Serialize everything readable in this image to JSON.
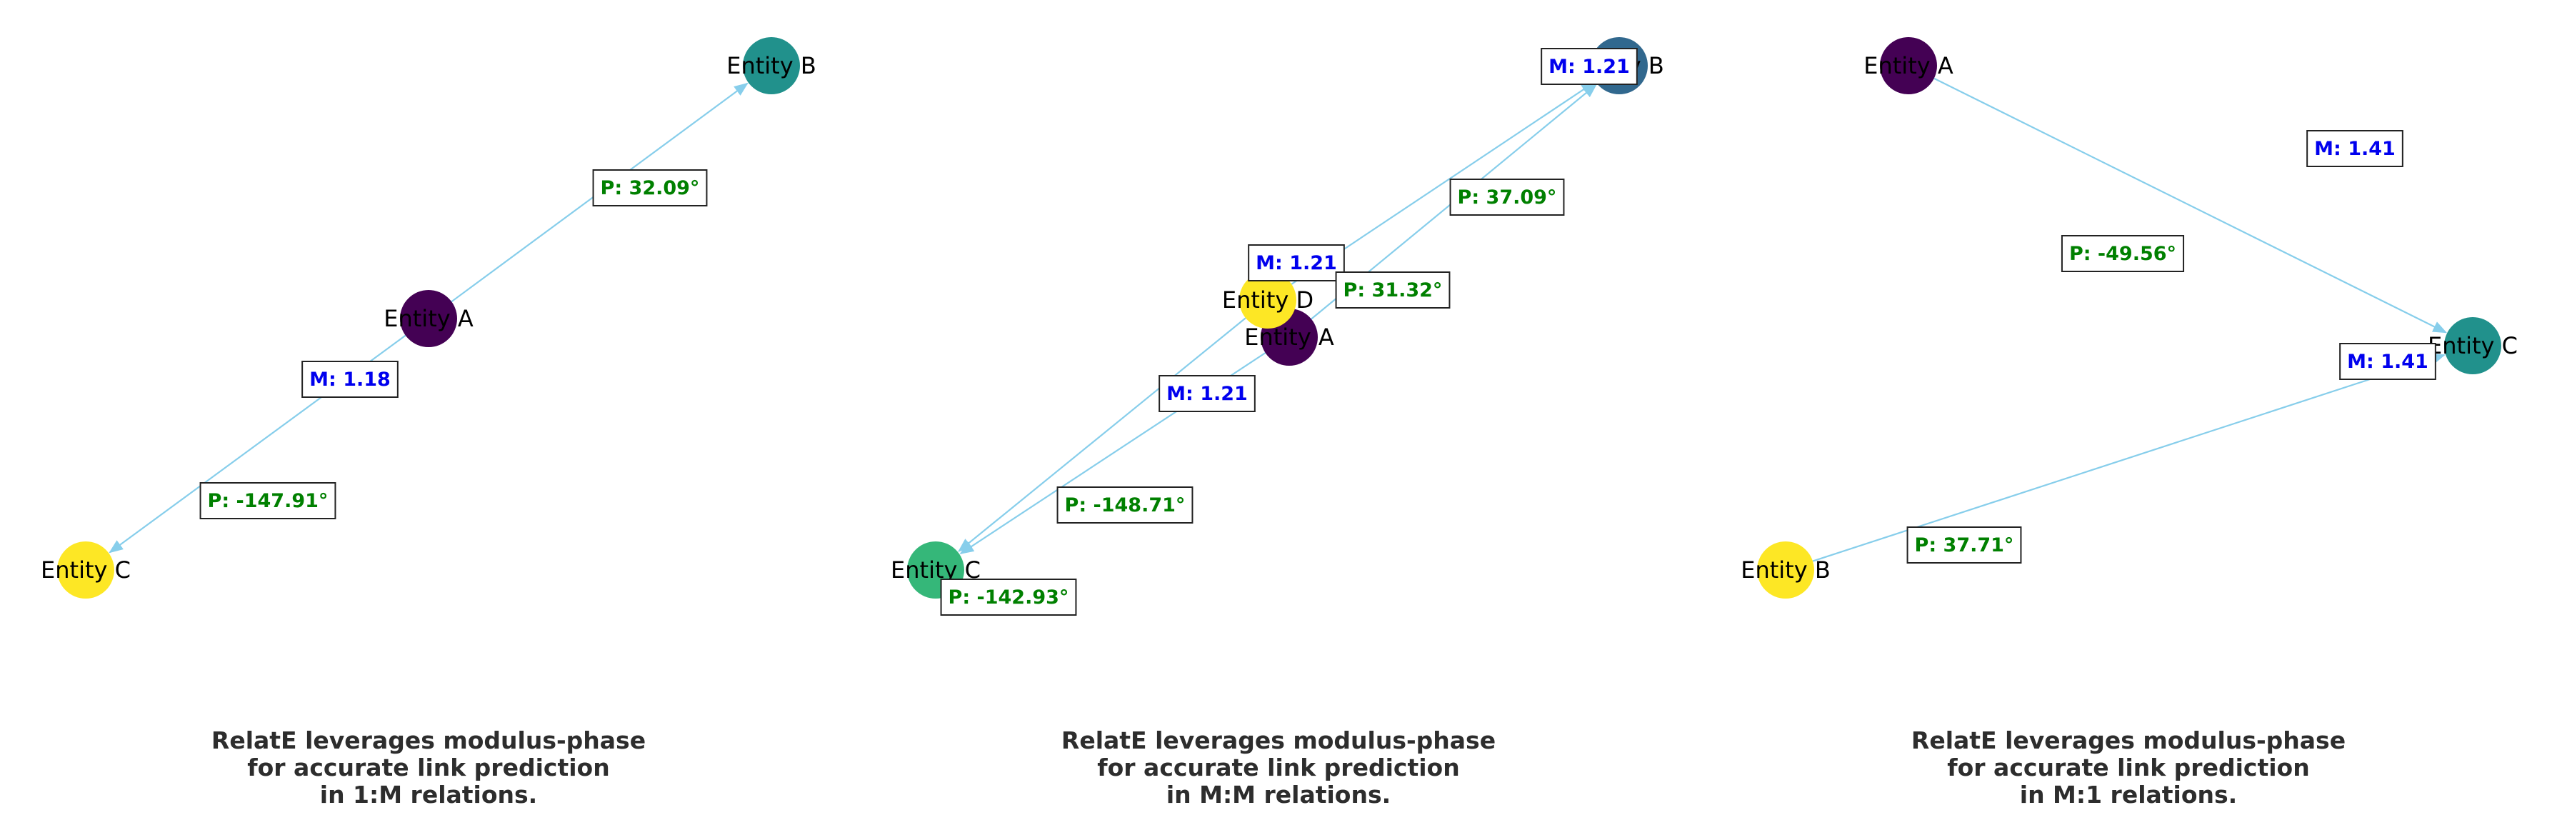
{
  "panels": [
    {
      "id": "one-to-many",
      "caption": [
        "RelatE leverages modulus-phase",
        "for accurate link prediction",
        "in 1:M relations."
      ],
      "nodes": [
        {
          "id": "A",
          "label": "Entity A",
          "color": "#440154"
        },
        {
          "id": "B",
          "label": "Entity B",
          "color": "#21918c"
        },
        {
          "id": "C",
          "label": "Entity C",
          "color": "#fde725"
        }
      ],
      "edges": [
        {
          "from": "A",
          "to": "B"
        },
        {
          "from": "A",
          "to": "C"
        }
      ],
      "labels": [
        {
          "kind": "phase",
          "text": "P: 32.09°"
        },
        {
          "kind": "modulus",
          "text": "M: 1.18"
        },
        {
          "kind": "phase",
          "text": "P: -147.91°"
        }
      ]
    },
    {
      "id": "many-to-many",
      "caption": [
        "RelatE leverages modulus-phase",
        "for accurate link prediction",
        "in M:M relations."
      ],
      "nodes": [
        {
          "id": "A",
          "label": "Entity A",
          "color": "#440154"
        },
        {
          "id": "B",
          "label": "Entity B",
          "color": "#31688e"
        },
        {
          "id": "C",
          "label": "Entity C",
          "color": "#35b779"
        },
        {
          "id": "D",
          "label": "Entity D",
          "color": "#fde725"
        }
      ],
      "edges": [
        {
          "from": "A",
          "to": "B"
        },
        {
          "from": "A",
          "to": "C"
        },
        {
          "from": "D",
          "to": "B"
        },
        {
          "from": "D",
          "to": "C"
        }
      ],
      "labels": [
        {
          "kind": "modulus",
          "text": "M: 1.21"
        },
        {
          "kind": "phase",
          "text": "P: 37.09°"
        },
        {
          "kind": "modulus",
          "text": "M: 1.21"
        },
        {
          "kind": "phase",
          "text": "P: 31.32°"
        },
        {
          "kind": "modulus",
          "text": "M: 1.21"
        },
        {
          "kind": "phase",
          "text": "P: -148.71°"
        },
        {
          "kind": "phase",
          "text": "P: -142.93°"
        }
      ]
    },
    {
      "id": "many-to-one",
      "caption": [
        "RelatE leverages modulus-phase",
        "for accurate link prediction",
        "in M:1 relations."
      ],
      "nodes": [
        {
          "id": "A",
          "label": "Entity A",
          "color": "#440154"
        },
        {
          "id": "B",
          "label": "Entity B",
          "color": "#fde725"
        },
        {
          "id": "C",
          "label": "Entity C",
          "color": "#21918c"
        }
      ],
      "edges": [
        {
          "from": "A",
          "to": "C"
        },
        {
          "from": "B",
          "to": "C"
        }
      ],
      "labels": [
        {
          "kind": "modulus",
          "text": "M: 1.41"
        },
        {
          "kind": "phase",
          "text": "P: -49.56°"
        },
        {
          "kind": "modulus",
          "text": "M: 1.41"
        },
        {
          "kind": "phase",
          "text": "P: 37.71°"
        }
      ]
    }
  ],
  "colors": {
    "edge": "#87ceeb",
    "modulus_text": "#0000ee",
    "phase_text": "#008000",
    "label_border": "#222222",
    "caption": "#2d2d2d"
  }
}
